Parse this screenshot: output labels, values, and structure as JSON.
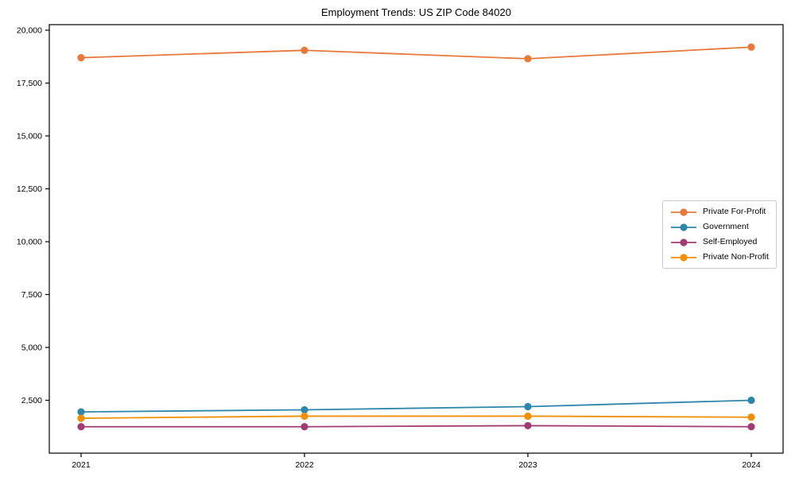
{
  "chart_data": {
    "type": "line",
    "title": "Employment Trends: US ZIP Code 84020",
    "xlabel": "",
    "ylabel": "",
    "x": [
      "2021",
      "2022",
      "2023",
      "2024"
    ],
    "series": [
      {
        "name": "Private For-Profit",
        "color": "#e8793a",
        "values": [
          18700,
          19050,
          18650,
          19200
        ]
      },
      {
        "name": "Government",
        "color": "#2e86ab",
        "values": [
          1950,
          2050,
          2200,
          2500
        ]
      },
      {
        "name": "Self-Employed",
        "color": "#a23b72",
        "values": [
          1250,
          1250,
          1300,
          1250
        ]
      },
      {
        "name": "Private Non-Profit",
        "color": "#f18f01",
        "values": [
          1650,
          1750,
          1750,
          1700
        ]
      }
    ],
    "ylim": [
      0,
      20263
    ],
    "yticks": [
      2500,
      5000,
      7500,
      10000,
      12500,
      15000,
      17500,
      20000
    ],
    "ytick_labels": [
      "2,500",
      "5,000",
      "7,500",
      "10,000",
      "12,500",
      "15,000",
      "17,500",
      "20,000"
    ],
    "grid": false,
    "legend_position": "right-middle",
    "frame_color": "#000000",
    "background_color": "#ffffff"
  }
}
